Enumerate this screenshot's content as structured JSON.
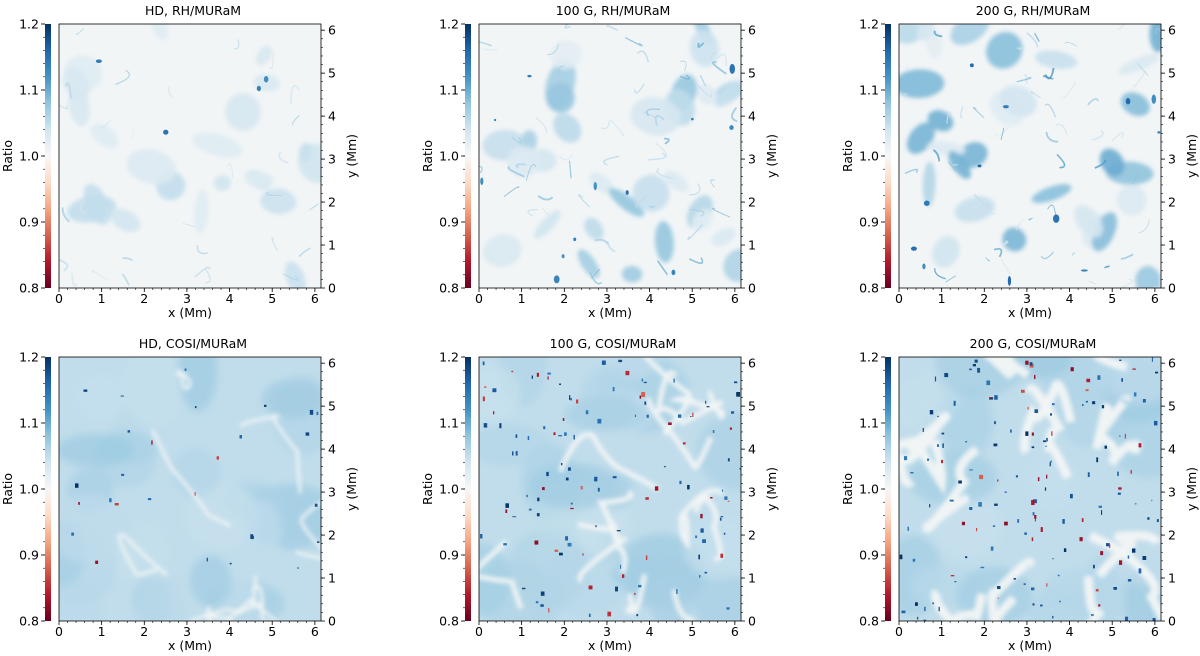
{
  "chart_data": [
    {
      "type": "heatmap",
      "title": "HD, RH/MURaM",
      "xlabel": "x (Mm)",
      "ylabel": "y (Mm)",
      "colorbar_label": "Ratio",
      "xlim": [
        0,
        6.144
      ],
      "ylim": [
        0,
        6.144
      ],
      "clim": [
        0.8,
        1.2
      ],
      "colormap": "RdBu",
      "xticks": [
        0,
        1,
        2,
        3,
        4,
        5,
        6
      ],
      "yticks": [
        0,
        1,
        2,
        3,
        4,
        5,
        6
      ],
      "cticks": [
        "0.8",
        "0.9",
        "1.0",
        "1.1",
        "1.2"
      ],
      "typical_ratio": [
        1.0,
        1.05
      ],
      "pattern": "faint blue patches"
    },
    {
      "type": "heatmap",
      "title": "100 G, RH/MURaM",
      "xlabel": "x (Mm)",
      "ylabel": "y (Mm)",
      "colorbar_label": "Ratio",
      "xlim": [
        0,
        6.144
      ],
      "ylim": [
        0,
        6.144
      ],
      "clim": [
        0.8,
        1.2
      ],
      "colormap": "RdBu",
      "xticks": [
        0,
        1,
        2,
        3,
        4,
        5,
        6
      ],
      "yticks": [
        0,
        1,
        2,
        3,
        4,
        5,
        6
      ],
      "cticks": [
        "0.8",
        "0.9",
        "1.0",
        "1.1",
        "1.2"
      ],
      "typical_ratio": [
        1.0,
        1.08
      ],
      "pattern": "blue contour patches"
    },
    {
      "type": "heatmap",
      "title": "200 G, RH/MURaM",
      "xlabel": "x (Mm)",
      "ylabel": "y (Mm)",
      "colorbar_label": "Ratio",
      "xlim": [
        0,
        6.144
      ],
      "ylim": [
        0,
        6.144
      ],
      "clim": [
        0.8,
        1.2
      ],
      "colormap": "RdBu",
      "xticks": [
        0,
        1,
        2,
        3,
        4,
        5,
        6
      ],
      "yticks": [
        0,
        1,
        2,
        3,
        4,
        5,
        6
      ],
      "cticks": [
        "0.8",
        "0.9",
        "1.0",
        "1.1",
        "1.2"
      ],
      "typical_ratio": [
        1.0,
        1.1
      ],
      "pattern": "blue contour patches"
    },
    {
      "type": "heatmap",
      "title": "HD, COSI/MURaM",
      "xlabel": "x (Mm)",
      "ylabel": "y (Mm)",
      "colorbar_label": "Ratio",
      "xlim": [
        0,
        6.144
      ],
      "ylim": [
        0,
        6.144
      ],
      "clim": [
        0.8,
        1.2
      ],
      "colormap": "RdBu",
      "xticks": [
        0,
        1,
        2,
        3,
        4,
        5,
        6
      ],
      "yticks": [
        0,
        1,
        2,
        3,
        4,
        5,
        6
      ],
      "cticks": [
        "0.8",
        "0.9",
        "1.0",
        "1.1",
        "1.2"
      ],
      "typical_ratio": [
        1.04,
        1.06
      ],
      "pattern": "granulation, sparse outliers"
    },
    {
      "type": "heatmap",
      "title": "100 G, COSI/MURaM",
      "xlabel": "x (Mm)",
      "ylabel": "y (Mm)",
      "colorbar_label": "Ratio",
      "xlim": [
        0,
        6.144
      ],
      "ylim": [
        0,
        6.144
      ],
      "clim": [
        0.8,
        1.2
      ],
      "colormap": "RdBu",
      "xticks": [
        0,
        1,
        2,
        3,
        4,
        5,
        6
      ],
      "yticks": [
        0,
        1,
        2,
        3,
        4,
        5,
        6
      ],
      "cticks": [
        "0.8",
        "0.9",
        "1.0",
        "1.1",
        "1.2"
      ],
      "typical_ratio": [
        1.04,
        1.06
      ],
      "pattern": "granulation, lanes with outliers"
    },
    {
      "type": "heatmap",
      "title": "200 G, COSI/MURaM",
      "xlabel": "x (Mm)",
      "ylabel": "y (Mm)",
      "colorbar_label": "Ratio",
      "xlim": [
        0,
        6.144
      ],
      "ylim": [
        0,
        6.144
      ],
      "clim": [
        0.8,
        1.2
      ],
      "colormap": "RdBu",
      "xticks": [
        0,
        1,
        2,
        3,
        4,
        5,
        6
      ],
      "yticks": [
        0,
        1,
        2,
        3,
        4,
        5,
        6
      ],
      "cticks": [
        "0.8",
        "0.9",
        "1.0",
        "1.1",
        "1.2"
      ],
      "typical_ratio": [
        1.04,
        1.06
      ],
      "pattern": "granulation, many outliers"
    }
  ]
}
